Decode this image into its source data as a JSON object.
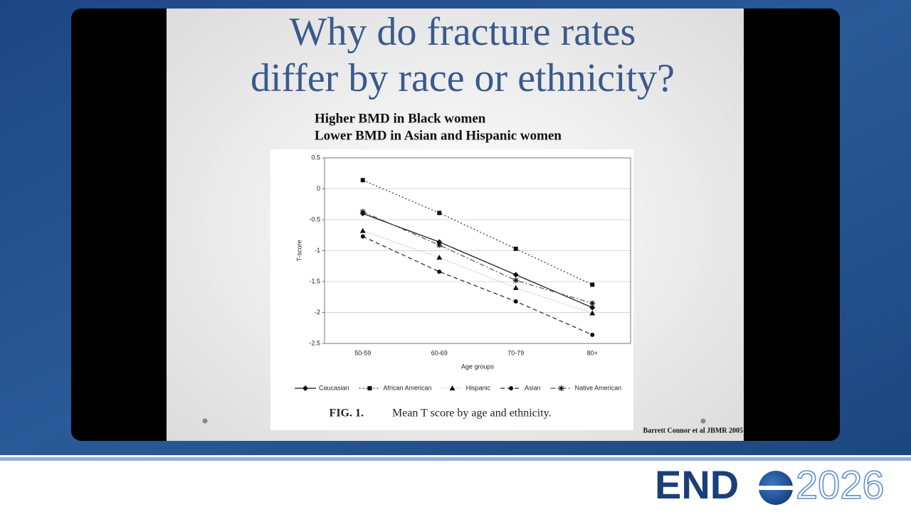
{
  "slide": {
    "title_lines": [
      "Why do fracture rates",
      "differ by race or ethnicity?"
    ],
    "subtitle_lines": [
      "Higher BMD in Black women",
      "Lower BMD in Asian and Hispanic women"
    ],
    "caption": {
      "label": "FIG. 1.",
      "text": "Mean T score by age and ethnicity."
    },
    "citation": "Barrett Connor et al JBMR 2005"
  },
  "logo": {
    "brand": "END",
    "year": "2026"
  },
  "chart_data": {
    "type": "line",
    "x_label": "Age groups",
    "y_label": "T-score",
    "categories": [
      "50-59",
      "60-69",
      "70-79",
      "80+"
    ],
    "ylim": [
      -2.5,
      0.5
    ],
    "yticks": [
      0.5,
      0,
      -0.5,
      -1,
      -1.5,
      -2,
      -2.5
    ],
    "grid": true,
    "series": [
      {
        "name": "Caucasian",
        "color": "#111111",
        "marker": "diamond",
        "dash": "solid",
        "values": [
          -0.4,
          -0.86,
          -1.39,
          -1.92
        ]
      },
      {
        "name": "African American",
        "color": "#333333",
        "marker": "square",
        "dash": "dotted",
        "values": [
          0.14,
          -0.39,
          -0.97,
          -1.55
        ]
      },
      {
        "name": "Hispanic",
        "color": "#aaaaaa",
        "marker": "triangle",
        "dash": "fine",
        "values": [
          -0.68,
          -1.11,
          -1.6,
          -2.01
        ]
      },
      {
        "name": "Asian",
        "color": "#222222",
        "marker": "circle",
        "dash": "dashed",
        "values": [
          -0.77,
          -1.34,
          -1.82,
          -2.36
        ]
      },
      {
        "name": "Native American",
        "color": "#555555",
        "marker": "star",
        "dash": "dashdot",
        "values": [
          -0.37,
          -0.91,
          -1.48,
          -1.85
        ]
      }
    ]
  }
}
